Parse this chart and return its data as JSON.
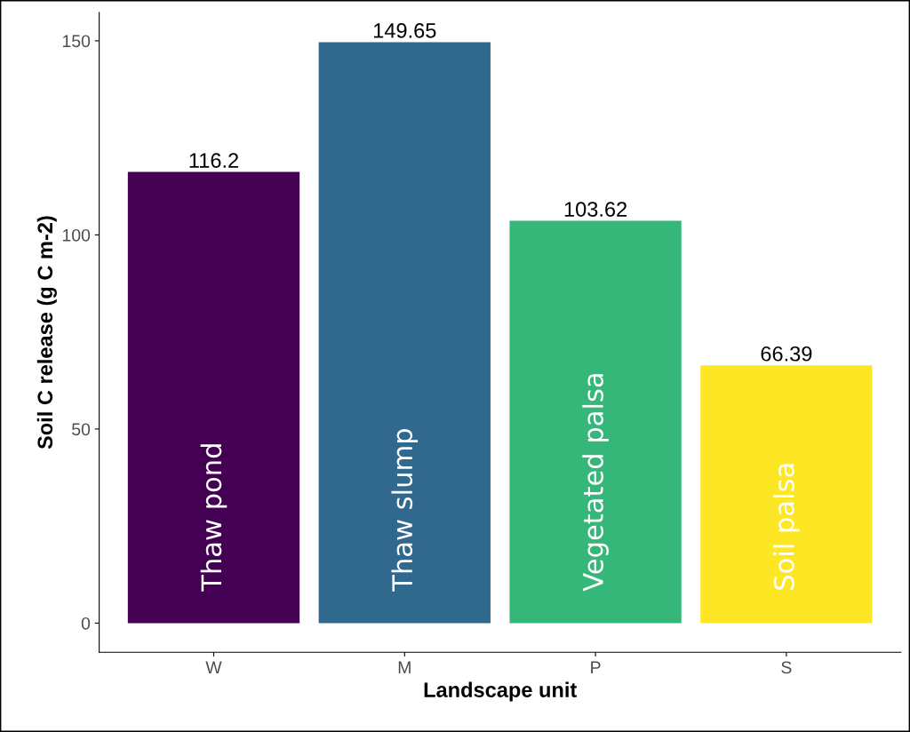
{
  "chart_data": {
    "type": "bar",
    "xlabel": "Landscape unit",
    "ylabel": "Soil C release (g C m-2)",
    "categories": [
      "W",
      "M",
      "P",
      "S"
    ],
    "values": [
      116.2,
      149.65,
      103.62,
      66.39
    ],
    "colors": [
      "#440154",
      "#31688e",
      "#35b779",
      "#fde725"
    ],
    "data_labels": true,
    "ylim": [
      -7.5,
      157.3
    ],
    "yticks": [
      0,
      50,
      100,
      150
    ],
    "grid": false,
    "legend": false,
    "annotations": [
      "Thaw pond",
      "Thaw slump",
      "Vegetated palsa",
      "Soil palsa"
    ]
  }
}
